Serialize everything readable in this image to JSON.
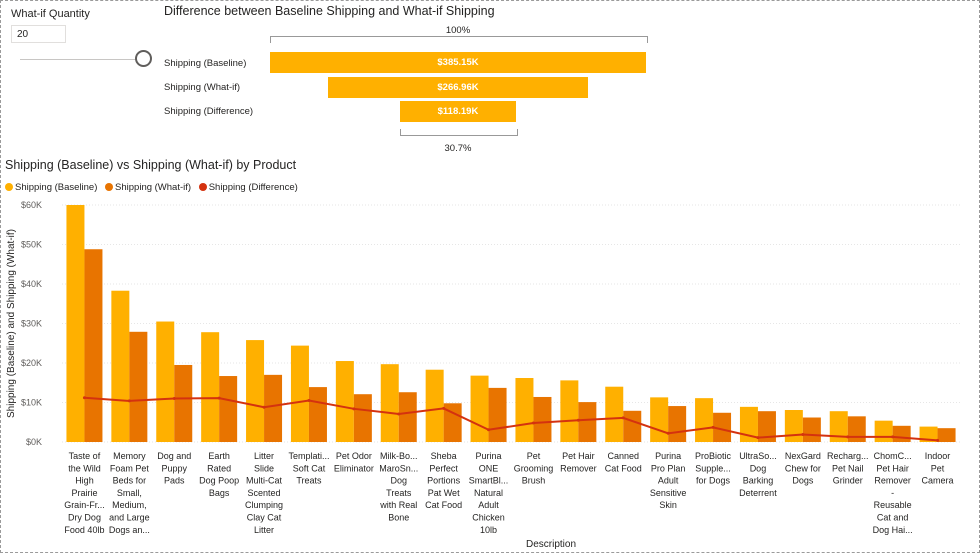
{
  "whatif": {
    "title": "What-if Quantity",
    "value": "20"
  },
  "funnel": {
    "title": "Difference between Baseline Shipping and What-if Shipping",
    "top_pct": "100%",
    "bottom_pct": "30.7%",
    "rows": [
      {
        "label": "Shipping (Baseline)",
        "value_label": "$385.15K",
        "value": 385.15
      },
      {
        "label": "Shipping (What-if)",
        "value_label": "$266.96K",
        "value": 266.96
      },
      {
        "label": "Shipping (Difference)",
        "value_label": "$118.19K",
        "value": 118.19
      }
    ]
  },
  "colors": {
    "baseline": "#ffb000",
    "whatif": "#e87400",
    "difference": "#d4320f",
    "funnel": "#ffb000"
  },
  "chart_data": {
    "type": "bar",
    "title": "Shipping (Baseline) vs Shipping (What-if) by Product",
    "xlabel": "Description",
    "ylabel": "Shipping (Baseline) and Shipping (What-if)",
    "ylim": [
      0,
      60000
    ],
    "yticks": [
      "$0K",
      "$10K",
      "$20K",
      "$30K",
      "$40K",
      "$50K",
      "$60K"
    ],
    "legend_position": "top-left",
    "categories": [
      [
        "Taste of",
        "the Wild",
        "High",
        "Prairie",
        "Grain-Fr...",
        "Dry Dog",
        "Food 40lb"
      ],
      [
        "Memory",
        "Foam Pet",
        "Beds for",
        "Small,",
        "Medium,",
        "and Large",
        "Dogs an..."
      ],
      [
        "Dog and",
        "Puppy",
        "Pads"
      ],
      [
        "Earth",
        "Rated",
        "Dog Poop",
        "Bags"
      ],
      [
        "Litter",
        "Slide",
        "Multi-Cat",
        "Scented",
        "Clumping",
        "Clay Cat",
        "Litter"
      ],
      [
        "Templati...",
        "Soft Cat",
        "Treats"
      ],
      [
        "Pet Odor",
        "Eliminator"
      ],
      [
        "Milk-Bo...",
        "MaroSn...",
        "Dog",
        "Treats",
        "with Real",
        "Bone"
      ],
      [
        "Sheba",
        "Perfect",
        "Portions",
        "Pat Wet",
        "Cat Food"
      ],
      [
        "Purina",
        "ONE",
        "SmartBl...",
        "Natural",
        "Adult",
        "Chicken",
        "10lb"
      ],
      [
        "Pet",
        "Grooming",
        "Brush"
      ],
      [
        "Pet Hair",
        "Remover"
      ],
      [
        "Canned",
        "Cat Food"
      ],
      [
        "Purina",
        "Pro Plan",
        "Adult",
        "Sensitive",
        "Skin"
      ],
      [
        "ProBiotic",
        "Supple...",
        "for Dogs"
      ],
      [
        "UltraSo...",
        "Dog",
        "Barking",
        "Deterrent"
      ],
      [
        "NexGard",
        "Chew for",
        "Dogs"
      ],
      [
        "Recharg...",
        "Pet Nail",
        "Grinder"
      ],
      [
        "ChomC...",
        "Pet Hair",
        "Remover",
        "-",
        "Reusable",
        "Cat and",
        "Dog Hai..."
      ],
      [
        "Indoor",
        "Pet",
        "Camera"
      ]
    ],
    "series": [
      {
        "name": "Shipping (Baseline)",
        "type": "bar",
        "values": [
          60000,
          38300,
          30500,
          27800,
          25800,
          24400,
          20500,
          19700,
          18300,
          16800,
          16200,
          15600,
          14000,
          11300,
          11100,
          8900,
          8100,
          7800,
          5400,
          3900
        ]
      },
      {
        "name": "Shipping (What-if)",
        "type": "bar",
        "values": [
          48800,
          27900,
          19500,
          16700,
          17000,
          13900,
          12100,
          12600,
          9800,
          13700,
          11400,
          10100,
          7900,
          9100,
          7400,
          7800,
          6200,
          6500,
          4100,
          3500
        ]
      },
      {
        "name": "Shipping (Difference)",
        "type": "line",
        "values": [
          11200,
          10400,
          11000,
          11100,
          8800,
          10500,
          8400,
          7100,
          8500,
          3100,
          4800,
          5500,
          6100,
          2200,
          3700,
          1100,
          1900,
          1300,
          1300,
          400
        ]
      }
    ]
  }
}
